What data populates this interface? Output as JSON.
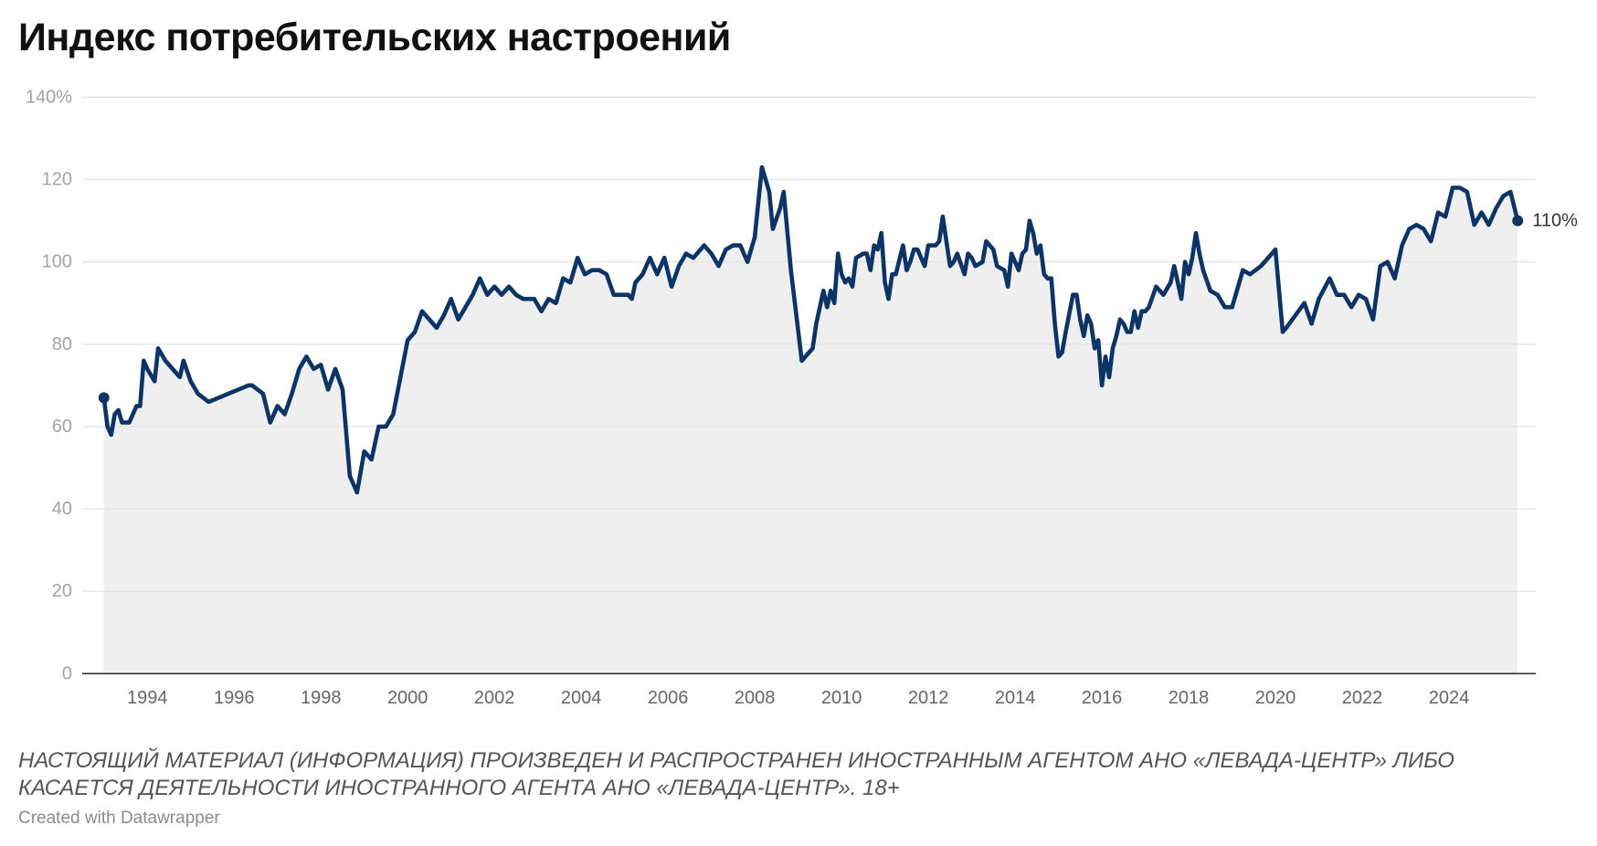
{
  "notes": [
    "НАСТОЯЩИЙ МАТЕРИАЛ (ИНФОРМАЦИЯ) ПРОИЗВЕДЕН И РАСПРОСТРАНЕН ИНОСТРАННЫМ АГЕНТОМ АНО «ЛЕВАДА-ЦЕНТР» ЛИБО",
    "КАСАЕТСЯ ДЕЯТЕЛЬНОСТИ ИНОСТРАННОГО АГЕНТА АНО «ЛЕВАДА-ЦЕНТР». 18+"
  ],
  "credit": "Created with Datawrapper",
  "colors": {
    "line": "#0c3466",
    "area": "#efefef",
    "grid": "#e2e2e2",
    "baseline": "#333333",
    "y_labels": "#a3a3a3",
    "x_labels": "#666666",
    "end_label": "#333333"
  },
  "chart_data": {
    "type": "area",
    "title": "Индекс потребительских настроений",
    "xlabel": "",
    "ylabel": "",
    "ylim": [
      0,
      140
    ],
    "xlim": [
      "1992-07",
      "2026-01"
    ],
    "grid": true,
    "yticks": [
      0,
      20,
      40,
      60,
      80,
      100,
      120,
      140
    ],
    "ytick_labels": [
      "0",
      "20",
      "40",
      "60",
      "80",
      "100",
      "120",
      "140%"
    ],
    "xtick_labels": [
      "1994",
      "1996",
      "1998",
      "2000",
      "2002",
      "2004",
      "2006",
      "2008",
      "2010",
      "2012",
      "2014",
      "2016",
      "2018",
      "2020",
      "2022",
      "2024"
    ],
    "end_label": "110%",
    "series": [
      {
        "x": [
          "1993-01",
          "1993-02",
          "1993-03",
          "1993-04",
          "1993-05",
          "1993-06",
          "1993-08",
          "1993-10",
          "1993-11",
          "1993-12",
          "1994-01",
          "1994-03",
          "1994-04",
          "1994-06",
          "1994-08",
          "1994-10",
          "1994-11",
          "1995-01",
          "1995-03",
          "1995-06",
          "1996-05",
          "1996-06",
          "1996-09",
          "1996-11",
          "1997-01",
          "1997-03",
          "1997-05",
          "1997-07",
          "1997-09",
          "1997-11",
          "1998-01",
          "1998-03",
          "1998-05",
          "1998-07",
          "1998-09",
          "1998-11",
          "1999-01",
          "1999-03",
          "1999-05",
          "1999-07",
          "1999-09",
          "1999-11",
          "2000-01",
          "2000-03",
          "2000-05",
          "2000-07",
          "2000-09",
          "2000-11",
          "2001-01",
          "2001-03",
          "2001-05",
          "2001-07",
          "2001-09",
          "2001-11",
          "2002-01",
          "2002-03",
          "2002-05",
          "2002-07",
          "2002-09",
          "2002-12",
          "2003-02",
          "2003-04",
          "2003-06",
          "2003-08",
          "2003-10",
          "2003-12",
          "2004-02",
          "2004-04",
          "2004-06",
          "2004-08",
          "2004-10",
          "2005-02",
          "2005-03",
          "2005-04",
          "2005-06",
          "2005-08",
          "2005-10",
          "2005-12",
          "2006-02",
          "2006-04",
          "2006-06",
          "2006-08",
          "2006-11",
          "2007-01",
          "2007-03",
          "2007-05",
          "2007-07",
          "2007-09",
          "2007-11",
          "2008-01",
          "2008-03",
          "2008-05",
          "2008-06",
          "2008-08",
          "2008-09",
          "2008-11",
          "2009-02",
          "2009-04",
          "2009-05",
          "2009-06",
          "2009-08",
          "2009-09",
          "2009-10",
          "2009-11",
          "2009-12",
          "2010-01",
          "2010-02",
          "2010-03",
          "2010-04",
          "2010-05",
          "2010-07",
          "2010-08",
          "2010-09",
          "2010-10",
          "2010-11",
          "2010-12",
          "2011-01",
          "2011-02",
          "2011-03",
          "2011-04",
          "2011-06",
          "2011-07",
          "2011-08",
          "2011-09",
          "2011-10",
          "2011-12",
          "2012-01",
          "2012-03",
          "2012-04",
          "2012-05",
          "2012-07",
          "2012-08",
          "2012-09",
          "2012-11",
          "2012-12",
          "2013-01",
          "2013-02",
          "2013-04",
          "2013-05",
          "2013-07",
          "2013-08",
          "2013-10",
          "2013-11",
          "2013-12",
          "2014-02",
          "2014-03",
          "2014-04",
          "2014-05",
          "2014-06",
          "2014-07",
          "2014-08",
          "2014-09",
          "2014-10",
          "2014-11",
          "2014-12",
          "2015-01",
          "2015-02",
          "2015-03",
          "2015-05",
          "2015-06",
          "2015-07",
          "2015-08",
          "2015-09",
          "2015-10",
          "2015-11",
          "2015-12",
          "2016-01",
          "2016-02",
          "2016-03",
          "2016-04",
          "2016-05",
          "2016-06",
          "2016-07",
          "2016-08",
          "2016-09",
          "2016-10",
          "2016-11",
          "2016-12",
          "2017-01",
          "2017-02",
          "2017-04",
          "2017-05",
          "2017-06",
          "2017-08",
          "2017-09",
          "2017-11",
          "2017-12",
          "2018-01",
          "2018-02",
          "2018-03",
          "2018-04",
          "2018-05",
          "2018-07",
          "2018-09",
          "2018-11",
          "2019-01",
          "2019-04",
          "2019-06",
          "2019-09",
          "2019-10",
          "2020-01",
          "2020-03",
          "2020-04",
          "2020-09",
          "2020-11",
          "2021-01",
          "2021-04",
          "2021-06",
          "2021-08",
          "2021-10",
          "2021-12",
          "2022-02",
          "2022-04",
          "2022-06",
          "2022-08",
          "2022-10",
          "2022-12",
          "2023-02",
          "2023-04",
          "2023-06",
          "2023-08",
          "2023-10",
          "2023-12",
          "2024-02",
          "2024-04",
          "2024-06",
          "2024-08",
          "2024-10",
          "2024-12",
          "2025-02",
          "2025-04",
          "2025-06",
          "2025-08"
        ],
        "values": [
          67,
          60,
          58,
          63,
          64,
          61,
          61,
          65,
          65,
          76,
          74,
          71,
          79,
          76,
          74,
          72,
          76,
          71,
          68,
          66,
          70,
          70,
          68,
          61,
          65,
          63,
          68,
          74,
          77,
          74,
          75,
          69,
          74,
          69,
          48,
          44,
          54,
          52,
          60,
          60,
          63,
          72,
          81,
          83,
          88,
          86,
          84,
          87,
          91,
          86,
          89,
          92,
          96,
          92,
          94,
          92,
          94,
          92,
          91,
          91,
          88,
          91,
          90,
          96,
          95,
          101,
          97,
          98,
          98,
          97,
          92,
          92,
          91,
          95,
          97,
          101,
          97,
          101,
          94,
          99,
          102,
          101,
          104,
          102,
          99,
          103,
          104,
          104,
          100,
          106,
          123,
          117,
          108,
          113,
          117,
          98,
          76,
          78,
          79,
          85,
          93,
          89,
          93,
          90,
          102,
          97,
          95,
          96,
          94,
          101,
          102,
          102,
          98,
          104,
          103,
          107,
          95,
          91,
          97,
          97,
          104,
          98,
          100,
          103,
          103,
          99,
          104,
          104,
          105,
          111,
          99,
          100,
          102,
          97,
          102,
          101,
          99,
          100,
          105,
          103,
          99,
          98,
          94,
          102,
          98,
          102,
          103,
          110,
          107,
          102,
          104,
          97,
          96,
          96,
          85,
          77,
          78,
          83,
          92,
          92,
          86,
          82,
          87,
          85,
          79,
          81,
          70,
          77,
          72,
          79,
          82,
          86,
          85,
          83,
          83,
          88,
          84,
          88,
          88,
          89,
          94,
          93,
          92,
          95,
          99,
          91,
          100,
          97,
          101,
          107,
          102,
          98,
          93,
          92,
          89,
          89,
          98,
          97,
          99,
          100,
          103,
          83,
          84,
          90,
          85,
          91,
          96,
          92,
          92,
          89,
          92,
          91,
          86,
          99,
          100,
          96,
          104,
          108,
          109,
          108,
          105,
          112,
          111,
          118,
          118,
          117,
          109,
          112,
          109,
          113,
          116,
          117,
          110
        ]
      }
    ]
  }
}
